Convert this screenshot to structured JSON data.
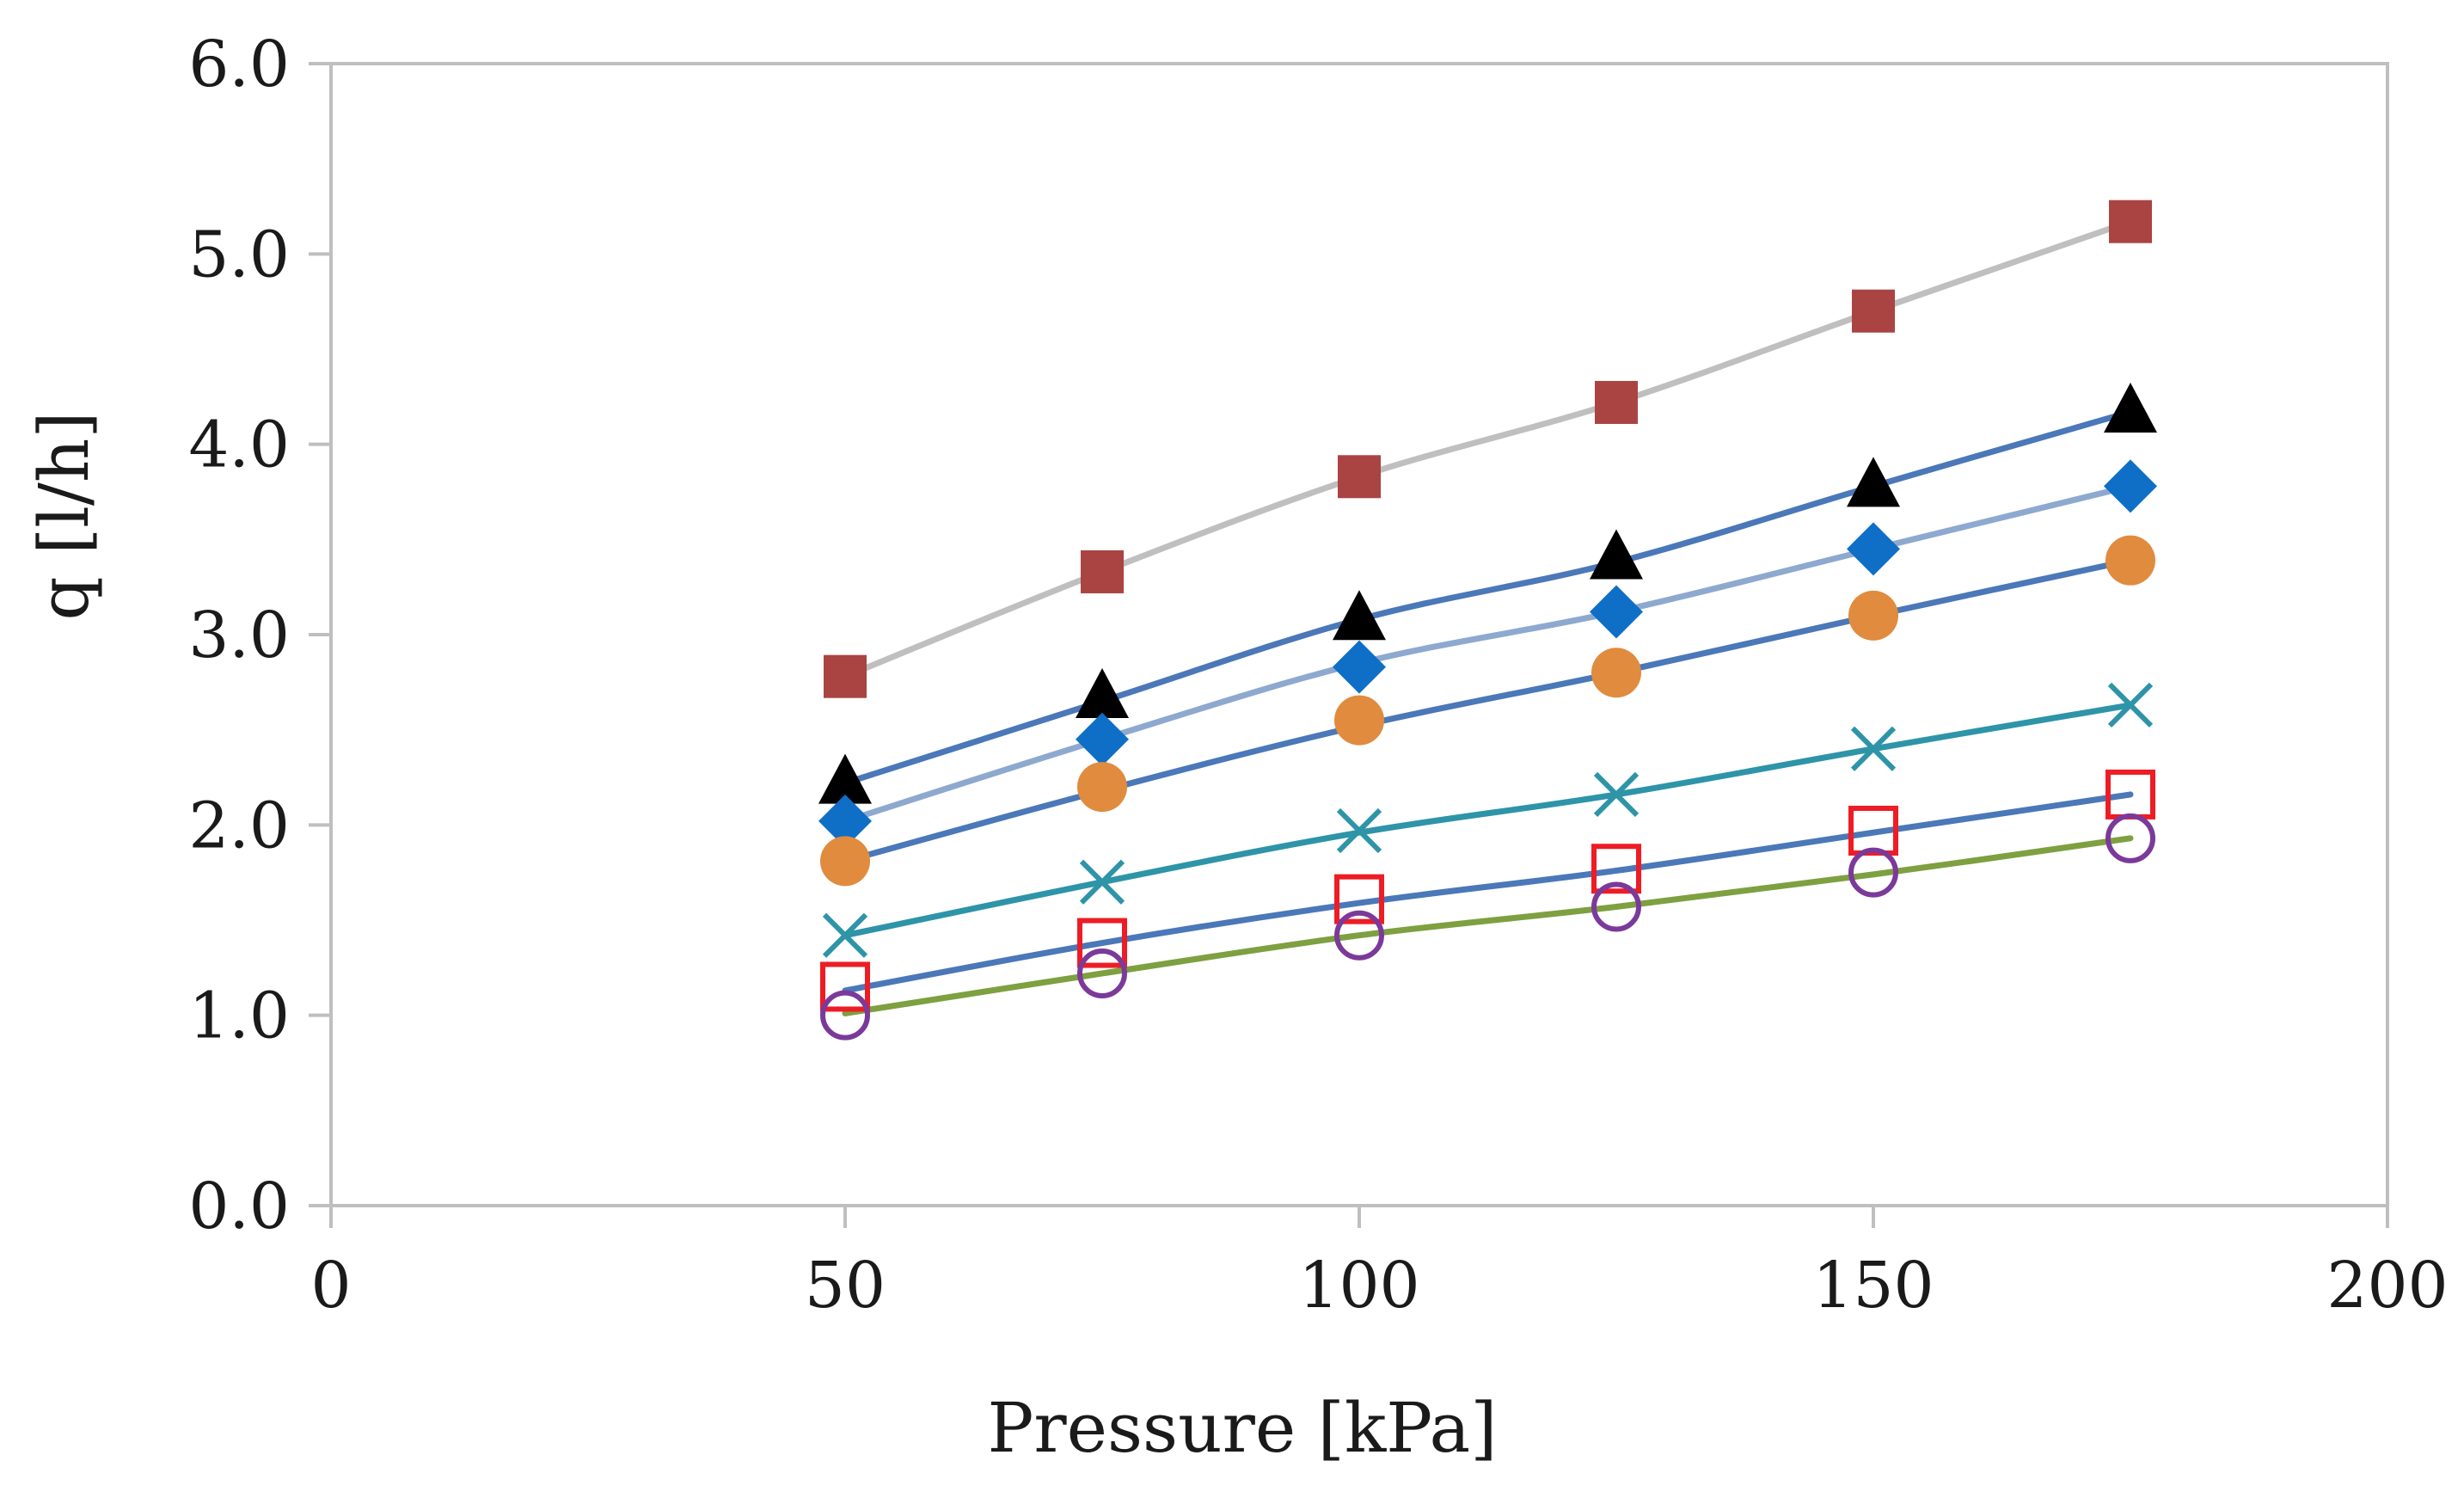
{
  "chart_data": {
    "type": "line",
    "title": "",
    "xlabel": "Pressure [kPa]",
    "ylabel": "q [l/h]",
    "xlim": [
      0,
      200
    ],
    "ylim": [
      0.0,
      6.0
    ],
    "x_ticks": [
      "0",
      "50",
      "100",
      "150",
      "200"
    ],
    "y_ticks": [
      "0.0",
      "1.0",
      "2.0",
      "3.0",
      "4.0",
      "5.0",
      "6.0"
    ],
    "grid": false,
    "legend": "none",
    "x": [
      50,
      75,
      100,
      125,
      150,
      175
    ],
    "series": [
      {
        "name": "series-square-filled",
        "marker": "square-filled",
        "marker_color": "#a94442",
        "line_color": "#bfbfbf",
        "points": [
          2.78,
          3.33,
          3.83,
          4.22,
          4.7,
          5.17
        ],
        "fit": [
          2.78,
          3.33,
          3.83,
          4.22,
          4.7,
          5.17
        ]
      },
      {
        "name": "series-triangle",
        "marker": "triangle-filled",
        "marker_color": "#000000",
        "line_color": "#4a78b8",
        "points": [
          2.22,
          2.67,
          3.08,
          3.4,
          3.78,
          4.17
        ],
        "fit": [
          2.22,
          2.65,
          3.08,
          3.38,
          3.78,
          4.17
        ]
      },
      {
        "name": "series-diamond",
        "marker": "diamond-filled",
        "marker_color": "#0f6fc6",
        "line_color": "#8ea9cf",
        "points": [
          2.02,
          2.45,
          2.83,
          3.12,
          3.45,
          3.78
        ],
        "fit": [
          2.02,
          2.45,
          2.85,
          3.12,
          3.45,
          3.78
        ]
      },
      {
        "name": "series-circle-filled",
        "marker": "circle-filled",
        "marker_color": "#e08b3e",
        "line_color": "#4a78b8",
        "points": [
          1.81,
          2.2,
          2.55,
          2.8,
          3.1,
          3.39
        ],
        "fit": [
          1.81,
          2.18,
          2.52,
          2.8,
          3.1,
          3.39
        ]
      },
      {
        "name": "series-cross",
        "marker": "x-cross",
        "marker_color": "#2e94a8",
        "line_color": "#2e94a8",
        "points": [
          1.42,
          1.7,
          1.97,
          2.16,
          2.4,
          2.63
        ],
        "fit": [
          1.42,
          1.7,
          1.96,
          2.16,
          2.4,
          2.63
        ]
      },
      {
        "name": "series-square-open",
        "marker": "square-open",
        "marker_color": "#ee1c25",
        "line_color": "#4a78b8",
        "points": [
          1.15,
          1.38,
          1.61,
          1.77,
          1.97,
          2.16
        ],
        "fit": [
          1.13,
          1.38,
          1.59,
          1.76,
          1.96,
          2.16
        ]
      },
      {
        "name": "series-circle-open",
        "marker": "circle-open",
        "marker_color": "#7b3a9a",
        "line_color": "#7ea040",
        "points": [
          1.0,
          1.22,
          1.42,
          1.57,
          1.75,
          1.93
        ],
        "fit": [
          1.01,
          1.22,
          1.42,
          1.57,
          1.74,
          1.93
        ]
      }
    ]
  }
}
